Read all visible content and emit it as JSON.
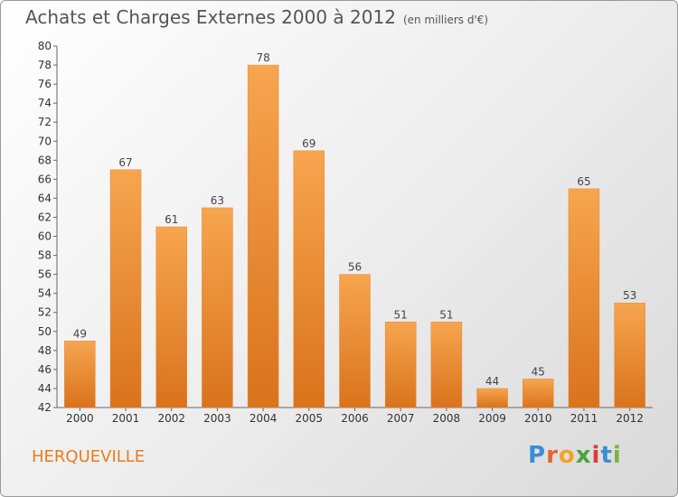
{
  "chart_data": {
    "type": "bar",
    "title": "Achats et Charges Externes 2000 à 2012",
    "subtitle": "(en milliers d'€)",
    "categories": [
      "2000",
      "2001",
      "2002",
      "2003",
      "2004",
      "2005",
      "2006",
      "2007",
      "2008",
      "2009",
      "2010",
      "2011",
      "2012"
    ],
    "values": [
      49,
      67,
      61,
      63,
      78,
      69,
      56,
      51,
      51,
      44,
      45,
      65,
      53
    ],
    "ylim": [
      42,
      80
    ],
    "ytick_step": 2,
    "grid": false,
    "bar_color_top": "#f7a54f",
    "bar_color_bottom": "#d9731c"
  },
  "footer": {
    "commune": "HERQUEVILLE",
    "logo_text": "Proxiti",
    "logo_colors": [
      "#3a8dd6",
      "#e8632d",
      "#f2a324",
      "#4aa53a",
      "#e03a3a",
      "#3a8dd6",
      "#7cb342"
    ]
  }
}
